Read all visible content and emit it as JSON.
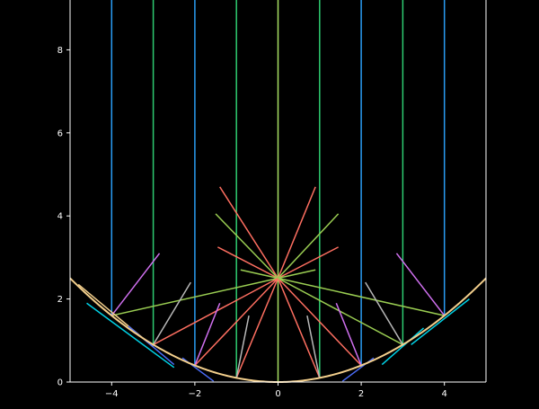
{
  "chart_data": {
    "type": "line",
    "title": "",
    "xlabel": "",
    "ylabel": "",
    "xlim": [
      -5,
      5
    ],
    "ylim": [
      0,
      9.2
    ],
    "xticks": [
      -4,
      -2,
      0,
      2,
      4
    ],
    "yticks": [
      0,
      2,
      4,
      6,
      8
    ],
    "xtick_labels": [
      "−4",
      "−2",
      "0",
      "2",
      "4"
    ],
    "ytick_labels": [
      "0",
      "2",
      "4",
      "6",
      "8"
    ],
    "grid": false,
    "background": "#000000",
    "parabola": {
      "equation": "y = x^2 / 10",
      "focus": [
        0,
        2.5
      ],
      "color": "#f3cf8c",
      "x_range": [
        -5,
        5
      ]
    },
    "incoming_rays": [
      {
        "x": -4,
        "color": "#2a9df4"
      },
      {
        "x": -3,
        "color": "#2ecc71"
      },
      {
        "x": -2,
        "color": "#2a9df4"
      },
      {
        "x": -1,
        "color": "#2ecc71"
      },
      {
        "x": 0,
        "color": "#a8e063"
      },
      {
        "x": 1,
        "color": "#2ecc71"
      },
      {
        "x": 2,
        "color": "#2a9df4"
      },
      {
        "x": 3,
        "color": "#2ecc71"
      },
      {
        "x": 4,
        "color": "#2a9df4"
      }
    ],
    "reflected_rays": [
      {
        "x": -4,
        "color": "#9acd52"
      },
      {
        "x": -3,
        "color": "#ff6f61"
      },
      {
        "x": -2,
        "color": "#ff6f61"
      },
      {
        "x": -1,
        "color": "#ff6f61"
      },
      {
        "x": 1,
        "color": "#ff6f61"
      },
      {
        "x": 2,
        "color": "#ff6f61"
      },
      {
        "x": 3,
        "color": "#9acd52"
      },
      {
        "x": 4,
        "color": "#9acd52"
      }
    ],
    "focus_extensions": [
      {
        "from": [
          0,
          2.5
        ],
        "to": [
          -1.4,
          4.7
        ],
        "color": "#ff6f61"
      },
      {
        "from": [
          0,
          2.5
        ],
        "to": [
          0.9,
          4.7
        ],
        "color": "#ff6f61"
      },
      {
        "from": [
          0,
          2.5
        ],
        "to": [
          -1.45,
          3.25
        ],
        "color": "#ff6f61"
      },
      {
        "from": [
          0,
          2.5
        ],
        "to": [
          1.45,
          3.25
        ],
        "color": "#ff6f61"
      },
      {
        "from": [
          0,
          2.5
        ],
        "to": [
          -1.5,
          4.05
        ],
        "color": "#9acd52"
      },
      {
        "from": [
          0,
          2.5
        ],
        "to": [
          1.45,
          4.05
        ],
        "color": "#9acd52"
      },
      {
        "from": [
          0,
          2.5
        ],
        "to": [
          -0.9,
          2.7
        ],
        "color": "#9acd52"
      },
      {
        "from": [
          0,
          2.5
        ],
        "to": [
          0.9,
          2.7
        ],
        "color": "#9acd52"
      }
    ],
    "tangent_segments": [
      {
        "x": -4,
        "from": [
          -4.8,
          2.35
        ],
        "to": [
          -3,
          0.85
        ],
        "color": "#f3cf8c"
      },
      {
        "x": -3,
        "from": [
          -3.6,
          1.35
        ],
        "to": [
          -2.5,
          0.42
        ],
        "color": "#4a6cf7"
      },
      {
        "x": -2,
        "from": [
          -2.3,
          0.58
        ],
        "to": [
          -1.55,
          0.02
        ],
        "color": "#4a6cf7"
      },
      {
        "x": 2,
        "from": [
          2.3,
          0.58
        ],
        "to": [
          1.55,
          0.02
        ],
        "color": "#4a6cf7"
      },
      {
        "x": 3,
        "from": [
          3.5,
          1.3
        ],
        "to": [
          2.5,
          0.42
        ],
        "color": "#00d2e6"
      },
      {
        "x": 4,
        "from": [
          4.6,
          2.0
        ],
        "to": [
          3.2,
          0.9
        ],
        "color": "#00d2e6"
      },
      {
        "x": -4.2,
        "from": [
          -4.6,
          1.9
        ],
        "to": [
          -2.5,
          0.35
        ],
        "color": "#00d2e6"
      }
    ],
    "normal_segments": [
      {
        "x": -4,
        "from": [
          -4,
          1.6
        ],
        "to": [
          -2.85,
          3.1
        ],
        "color": "#d070f0"
      },
      {
        "x": -3,
        "from": [
          -3,
          0.9
        ],
        "to": [
          -2.1,
          2.4
        ],
        "color": "#b8b8b8"
      },
      {
        "x": -2,
        "from": [
          -2,
          0.4
        ],
        "to": [
          -1.4,
          1.9
        ],
        "color": "#d070f0"
      },
      {
        "x": -1,
        "from": [
          -1,
          0.1
        ],
        "to": [
          -0.7,
          1.6
        ],
        "color": "#b8b8b8"
      },
      {
        "x": 1,
        "from": [
          1,
          0.1
        ],
        "to": [
          0.7,
          1.6
        ],
        "color": "#b8b8b8"
      },
      {
        "x": 2,
        "from": [
          2,
          0.4
        ],
        "to": [
          1.4,
          1.9
        ],
        "color": "#d070f0"
      },
      {
        "x": 3,
        "from": [
          3,
          0.9
        ],
        "to": [
          2.1,
          2.4
        ],
        "color": "#b8b8b8"
      },
      {
        "x": 4,
        "from": [
          4,
          1.6
        ],
        "to": [
          2.85,
          3.1
        ],
        "color": "#d070f0"
      }
    ]
  }
}
